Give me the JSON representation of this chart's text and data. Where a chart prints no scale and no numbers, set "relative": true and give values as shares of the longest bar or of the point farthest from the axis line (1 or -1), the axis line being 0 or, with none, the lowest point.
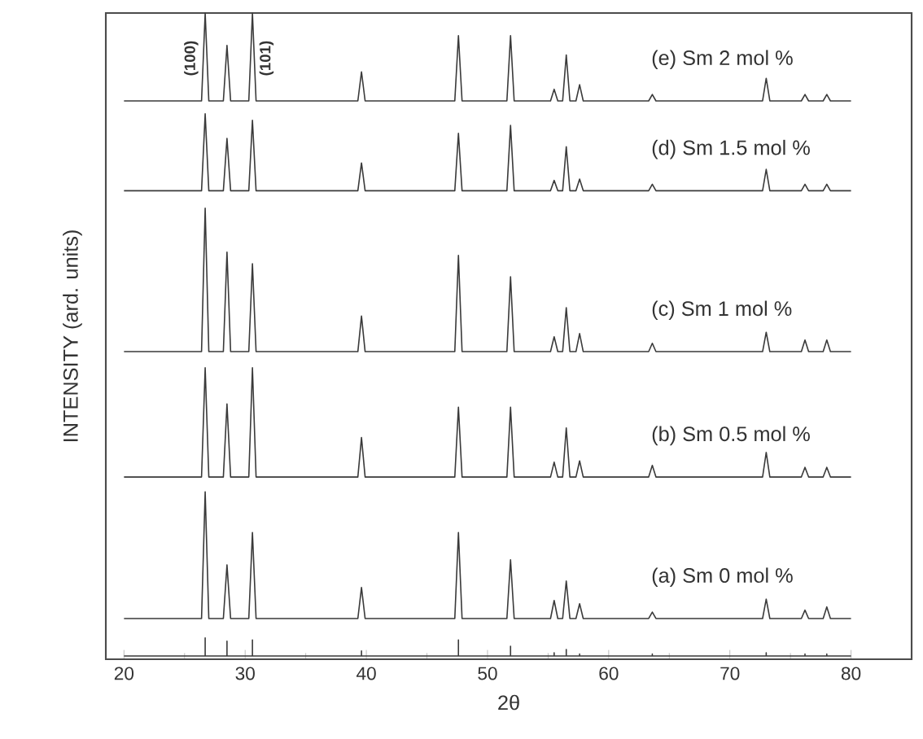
{
  "chart_data": {
    "type": "line",
    "relative": true,
    "xlabel": "2θ",
    "ylabel": "INTENSITY (ard. units)",
    "xlim": [
      18.5,
      85
    ],
    "xticks": [
      20,
      30,
      40,
      50,
      60,
      70,
      80
    ],
    "x": [
      20,
      26.4,
      26.7,
      27.0,
      28.2,
      28.5,
      28.8,
      30.3,
      30.6,
      30.9,
      39.3,
      39.6,
      39.9,
      47.3,
      47.6,
      47.9,
      51.6,
      51.9,
      52.2,
      55.2,
      55.5,
      55.8,
      56.2,
      56.5,
      56.8,
      57.3,
      57.6,
      57.9,
      63.3,
      63.6,
      63.9,
      72.7,
      73.0,
      73.3,
      75.9,
      76.2,
      76.5,
      77.7,
      78.0,
      78.3,
      80
    ],
    "annotations": [
      {
        "text": "(100)",
        "x": 26.7,
        "y": 0.93
      },
      {
        "text": "(101)",
        "x": 30.6,
        "y": 0.93
      }
    ],
    "series": [
      {
        "name": "(a) Sm 0 mol %",
        "color": "#3a3a3a",
        "values": [
          0.063,
          0.063,
          0.259,
          0.063,
          0.063,
          0.146,
          0.063,
          0.063,
          0.196,
          0.063,
          0.063,
          0.111,
          0.063,
          0.063,
          0.196,
          0.063,
          0.063,
          0.154,
          0.063,
          0.063,
          0.091,
          0.063,
          0.063,
          0.121,
          0.063,
          0.063,
          0.086,
          0.063,
          0.063,
          0.073,
          0.063,
          0.063,
          0.093,
          0.063,
          0.063,
          0.076,
          0.063,
          0.063,
          0.081,
          0.063,
          0.063
        ]
      },
      {
        "name": "(b) Sm 0.5 mol %",
        "color": "#3a3a3a",
        "values": [
          0.282,
          0.282,
          0.451,
          0.282,
          0.282,
          0.395,
          0.282,
          0.282,
          0.451,
          0.282,
          0.282,
          0.343,
          0.282,
          0.282,
          0.39,
          0.282,
          0.282,
          0.39,
          0.282,
          0.282,
          0.305,
          0.282,
          0.282,
          0.358,
          0.282,
          0.282,
          0.307,
          0.282,
          0.282,
          0.3,
          0.282,
          0.282,
          0.32,
          0.282,
          0.282,
          0.297,
          0.282,
          0.282,
          0.297,
          0.282,
          0.282
        ]
      },
      {
        "name": "(c) Sm 1 mol %",
        "color": "#3a3a3a",
        "values": [
          0.476,
          0.476,
          0.698,
          0.476,
          0.476,
          0.63,
          0.476,
          0.476,
          0.612,
          0.476,
          0.476,
          0.531,
          0.476,
          0.476,
          0.625,
          0.476,
          0.476,
          0.592,
          0.476,
          0.476,
          0.499,
          0.476,
          0.476,
          0.544,
          0.476,
          0.476,
          0.504,
          0.476,
          0.476,
          0.489,
          0.476,
          0.476,
          0.506,
          0.476,
          0.476,
          0.494,
          0.476,
          0.476,
          0.494,
          0.476,
          0.476
        ]
      },
      {
        "name": "(d) Sm 1.5 mol %",
        "color": "#3a3a3a",
        "values": [
          0.725,
          0.725,
          0.844,
          0.725,
          0.725,
          0.806,
          0.725,
          0.725,
          0.834,
          0.725,
          0.725,
          0.768,
          0.725,
          0.725,
          0.814,
          0.725,
          0.725,
          0.826,
          0.725,
          0.725,
          0.741,
          0.725,
          0.725,
          0.793,
          0.725,
          0.725,
          0.743,
          0.725,
          0.725,
          0.735,
          0.725,
          0.725,
          0.758,
          0.725,
          0.725,
          0.735,
          0.725,
          0.725,
          0.735,
          0.725,
          0.725
        ]
      },
      {
        "name": "(e) Sm 2 mol %",
        "color": "#3a3a3a",
        "values": [
          0.864,
          0.864,
          1.0,
          0.864,
          0.864,
          0.95,
          0.864,
          0.864,
          1.0,
          0.864,
          0.864,
          0.909,
          0.864,
          0.864,
          0.965,
          0.864,
          0.864,
          0.965,
          0.864,
          0.864,
          0.882,
          0.864,
          0.864,
          0.935,
          0.864,
          0.864,
          0.889,
          0.864,
          0.864,
          0.874,
          0.864,
          0.864,
          0.899,
          0.864,
          0.864,
          0.874,
          0.864,
          0.864,
          0.874,
          0.864,
          0.864
        ]
      },
      {
        "color": "#3a3a3a",
        "x": [
          20,
          26.7,
          26.7,
          26.7,
          28.5,
          28.5,
          28.5,
          30.6,
          30.6,
          30.6,
          39.6,
          39.6,
          39.6,
          47.6,
          47.6,
          47.6,
          51.9,
          51.9,
          51.9,
          55.5,
          55.5,
          55.5,
          56.5,
          56.5,
          56.5,
          57.6,
          57.6,
          57.6,
          63.6,
          63.6,
          63.6,
          73.0,
          73.0,
          73.0,
          76.2,
          76.2,
          76.2,
          78.0,
          78.0,
          78.0,
          80
        ],
        "values": [
          0.005,
          0.005,
          0.033,
          0.005,
          0.005,
          0.028,
          0.005,
          0.005,
          0.03,
          0.005,
          0.005,
          0.013,
          0.005,
          0.005,
          0.03,
          0.005,
          0.005,
          0.02,
          0.005,
          0.005,
          0.01,
          0.005,
          0.005,
          0.015,
          0.005,
          0.005,
          0.008,
          0.005,
          0.005,
          0.008,
          0.005,
          0.005,
          0.01,
          0.005,
          0.005,
          0.008,
          0.005,
          0.005,
          0.008,
          0.005,
          0.005
        ]
      }
    ]
  }
}
